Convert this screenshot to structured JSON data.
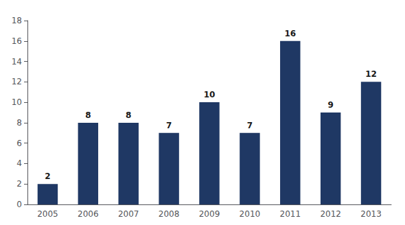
{
  "chart_data": {
    "type": "bar",
    "categories": [
      "2005",
      "2006",
      "2007",
      "2008",
      "2009",
      "2010",
      "2011",
      "2012",
      "2013"
    ],
    "values": [
      2,
      8,
      8,
      7,
      10,
      7,
      16,
      9,
      12
    ],
    "color": "#1F3864",
    "ylim": [
      0,
      18
    ],
    "yticks": [
      0,
      2,
      4,
      6,
      8,
      10,
      12,
      14,
      16,
      18
    ],
    "grid": false,
    "data_labels": true
  }
}
